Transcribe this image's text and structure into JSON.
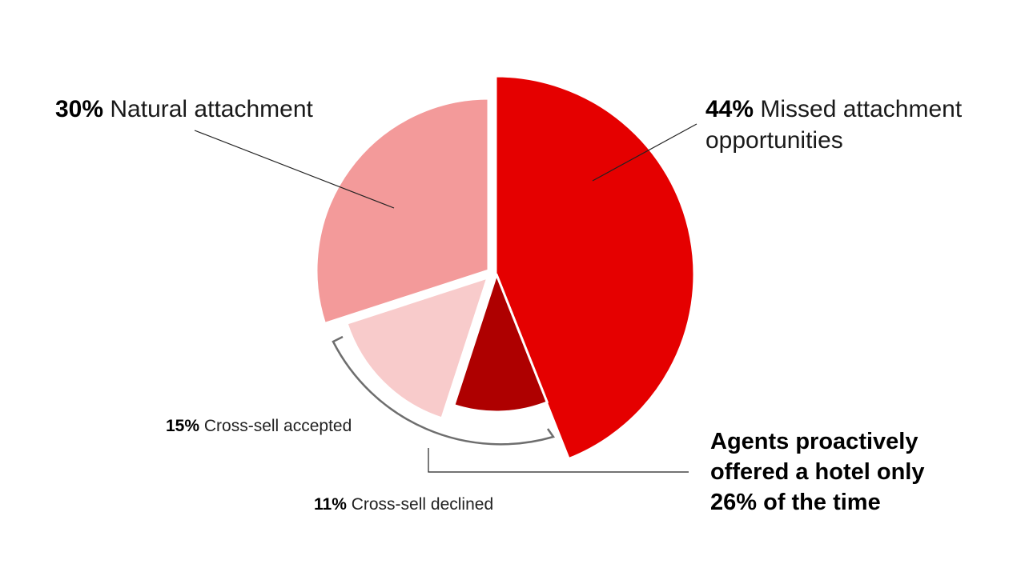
{
  "chart_data": {
    "type": "pie",
    "slices": [
      {
        "key": "missed",
        "pct_label": "44%",
        "text": "Missed attachment opportunities",
        "value": 44,
        "color": "#E50000"
      },
      {
        "key": "declined",
        "pct_label": "11%",
        "text": "Cross-sell declined",
        "value": 11,
        "color": "#AE0000"
      },
      {
        "key": "accepted",
        "pct_label": "15%",
        "text": "Cross-sell accepted",
        "value": 15,
        "color": "#F8CBCB"
      },
      {
        "key": "natural",
        "pct_label": "30%",
        "text": "Natural attachment",
        "value": 30,
        "color": "#F39A9A"
      }
    ]
  },
  "labels": {
    "natural": {
      "pct": "30%",
      "text": "Natural attachment"
    },
    "missed": {
      "pct": "44%",
      "line1": "Missed attachment",
      "line2": "opportunities"
    },
    "accepted": {
      "pct": "15%",
      "text": "Cross-sell accepted"
    },
    "declined": {
      "pct": "11%",
      "text": "Cross-sell declined"
    }
  },
  "callout": {
    "line1": "Agents proactively",
    "line2": "offered a hotel only",
    "line3": "26% of the time"
  }
}
